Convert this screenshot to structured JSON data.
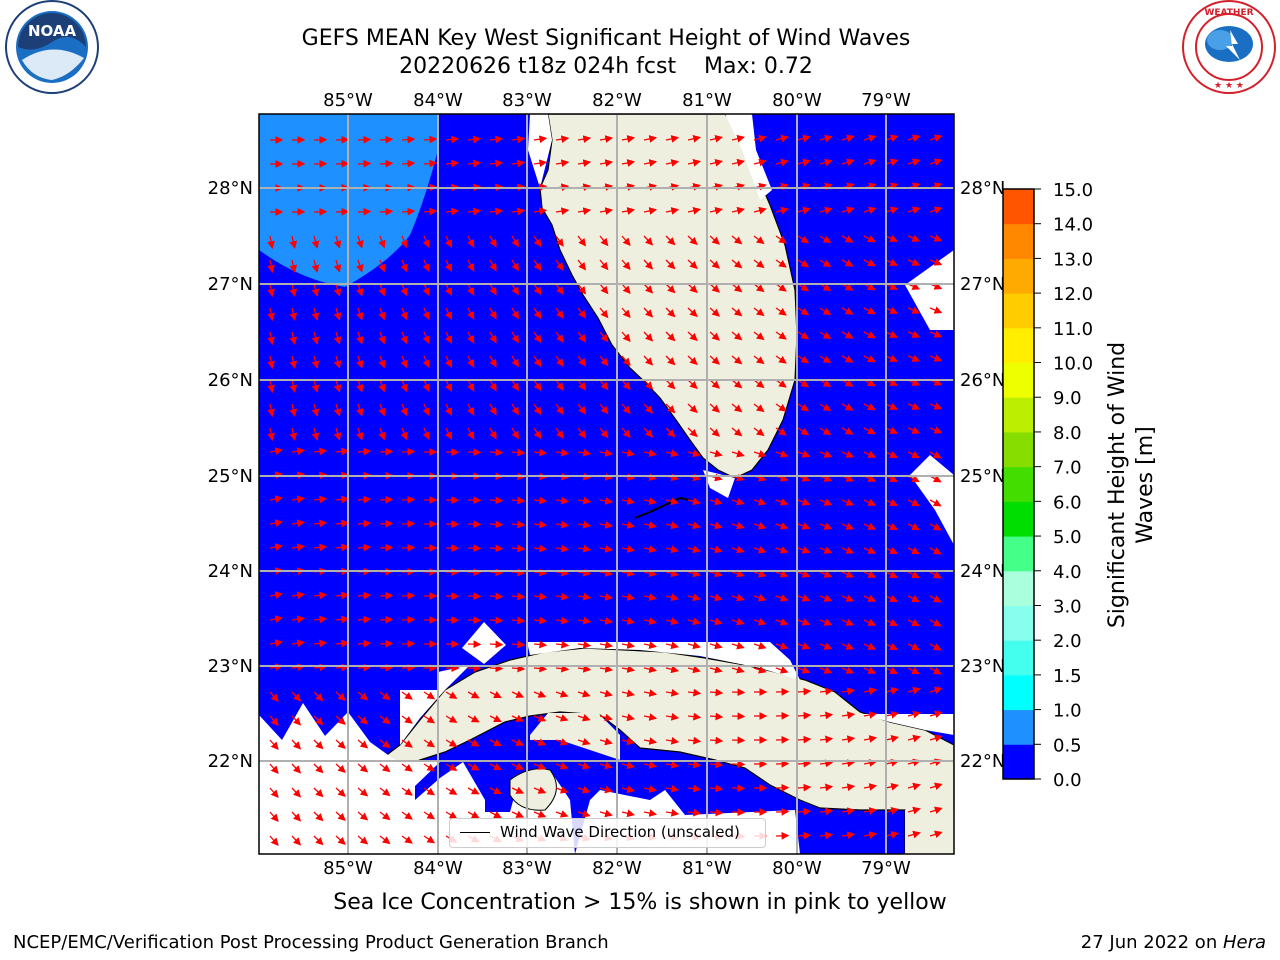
{
  "title": {
    "line1": "GEFS MEAN Key West Significant Height of Wind Waves",
    "line2": "20220626 t18z 024h fcst    Max: 0.72"
  },
  "logos": {
    "left": "NOAA",
    "left_ring_text": "NATIONAL OCEANIC AND ATMOSPHERIC ADMINISTRATION · U.S. DEPARTMENT OF COMMERCE",
    "right_ring_text": "NATIONAL WEATHER SERVICE"
  },
  "map": {
    "lon_labels": [
      "85°W",
      "84°W",
      "83°W",
      "82°W",
      "81°W",
      "80°W",
      "79°W"
    ],
    "lat_labels": [
      "28°N",
      "27°N",
      "26°N",
      "25°N",
      "24°N",
      "23°N",
      "22°N"
    ],
    "legend_label": "Wind Wave Direction (unscaled)",
    "colors": {
      "sea_low": "#0000ff",
      "sea_mid": "#1e90ff",
      "land": "#efefdf",
      "arrow": "#ff0000",
      "grid": "#b0b0b0"
    }
  },
  "colorbar": {
    "label": "Significant Height of Wind Waves [m]",
    "ticks": [
      "0.0",
      "0.5",
      "1.0",
      "1.5",
      "2.0",
      "3.0",
      "4.0",
      "5.0",
      "6.0",
      "7.0",
      "8.0",
      "9.0",
      "10.0",
      "11.0",
      "12.0",
      "13.0",
      "14.0",
      "15.0"
    ],
    "colors": [
      "#0000ff",
      "#1e90ff",
      "#00ffff",
      "#44ffee",
      "#88ffee",
      "#aaffdd",
      "#44ff88",
      "#00dd00",
      "#44dd00",
      "#88dd00",
      "#bbee00",
      "#eeff00",
      "#ffee00",
      "#ffcc00",
      "#ffaa00",
      "#ff8800",
      "#ff5500",
      "#ff2200",
      "#ff0000"
    ]
  },
  "note": "Sea Ice Concentration > 15% is shown in pink to yellow",
  "footer": {
    "left": "NCEP/EMC/Verification Post Processing Product Generation Branch",
    "right_prefix": "27 Jun 2022 on ",
    "right_host": "Hera"
  }
}
